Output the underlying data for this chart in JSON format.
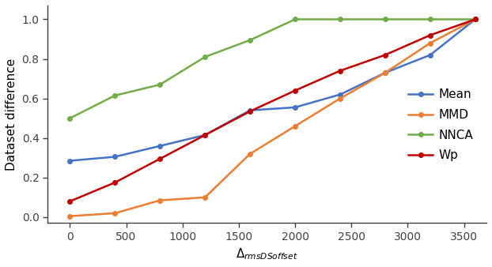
{
  "x": [
    0,
    400,
    800,
    1200,
    1600,
    2000,
    2400,
    2800,
    3200,
    3600
  ],
  "mean": [
    0.285,
    0.305,
    0.36,
    0.415,
    0.54,
    0.555,
    0.62,
    0.73,
    0.82,
    1.0
  ],
  "mmd": [
    0.005,
    0.02,
    0.085,
    0.1,
    0.32,
    0.46,
    0.6,
    0.73,
    0.88,
    1.0
  ],
  "nnca": [
    0.5,
    0.615,
    0.67,
    0.81,
    0.895,
    1.0,
    1.0,
    1.0,
    1.0,
    1.0
  ],
  "wp": [
    0.08,
    0.175,
    0.295,
    0.415,
    0.535,
    0.64,
    0.74,
    0.82,
    0.92,
    1.0
  ],
  "colors": {
    "mean": "#4472C4",
    "mmd": "#ED7D31",
    "nnca": "#70AD47",
    "wp": "#C00000"
  },
  "xlabel_prefix": "Δ",
  "xlabel_suffix": "rmsDSoffset",
  "ylabel": "Dataset difference",
  "xlim": [
    -200,
    3700
  ],
  "ylim": [
    -0.03,
    1.07
  ],
  "xticks": [
    0,
    500,
    1000,
    1500,
    2000,
    2500,
    3000,
    3500
  ],
  "yticks": [
    0.0,
    0.2,
    0.4,
    0.6,
    0.8,
    1.0
  ],
  "legend_labels": [
    "Mean",
    "MMD",
    "NNCA",
    "Wp"
  ],
  "marker": "o",
  "markersize": 4,
  "linewidth": 1.8,
  "fontsize_axis": 11,
  "fontsize_legend": 11,
  "fontsize_ticks": 10,
  "spine_color": "#404040"
}
